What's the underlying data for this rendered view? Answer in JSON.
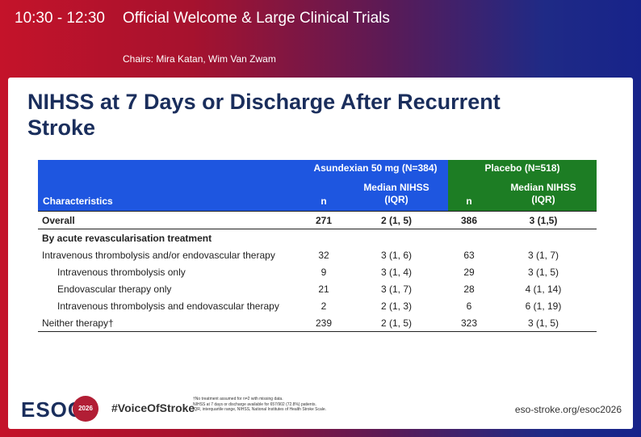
{
  "header": {
    "time": "10:30 - 12:30",
    "session_title": "Official Welcome & Large Clinical Trials",
    "chairs": "Chairs: Mira Katan, Wim Van Zwam"
  },
  "slide": {
    "title_line1": "NIHSS at 7 Days or Discharge After Recurrent",
    "title_line2": "Stroke"
  },
  "table": {
    "group_asundexian": "Asundexian 50 mg (N=384)",
    "group_placebo": "Placebo (N=518)",
    "col_characteristics": "Characteristics",
    "col_n": "n",
    "col_median_line1": "Median NIHSS",
    "col_median_line2": "(IQR)",
    "rows": [
      {
        "label": "Overall",
        "a_n": "271",
        "a_med": "2 (1, 5)",
        "p_n": "386",
        "p_med": "3 (1,5)"
      },
      {
        "label": "By acute revascularisation treatment",
        "a_n": "",
        "a_med": "",
        "p_n": "",
        "p_med": ""
      },
      {
        "label": "Intravenous thrombolysis and/or endovascular therapy",
        "a_n": "32",
        "a_med": "3 (1, 6)",
        "p_n": "63",
        "p_med": "3 (1, 7)"
      },
      {
        "label": "Intravenous thrombolysis only",
        "a_n": "9",
        "a_med": "3 (1, 4)",
        "p_n": "29",
        "p_med": "3 (1, 5)"
      },
      {
        "label": "Endovascular therapy only",
        "a_n": "21",
        "a_med": "3 (1, 7)",
        "p_n": "28",
        "p_med": "4 (1, 14)"
      },
      {
        "label": "Intravenous thrombolysis and endovascular therapy",
        "a_n": "2",
        "a_med": "2 (1, 3)",
        "p_n": "6",
        "p_med": "6 (1, 19)"
      },
      {
        "label": "Neither therapy†",
        "a_n": "239",
        "a_med": "2 (1, 5)",
        "p_n": "323",
        "p_med": "3 (1, 5)"
      }
    ]
  },
  "footer": {
    "logo_text": "ESOC",
    "logo_year": "2026",
    "hashtag": "#VoiceOfStroke",
    "footnote1": "†No treatment assumed for n=2 with missing data.",
    "footnote2": "NIHSS at 7 days or discharge available for 657/902 (72.8%) patients.",
    "footnote3": "IQR, interquartile range, NIHSS, National Institutes of Health Stroke Scale.",
    "website": "eso-stroke.org/esoc2026"
  },
  "colors": {
    "asundexian_header": "#1e56e0",
    "placebo_header": "#1d7d24",
    "title_color": "#1a2e5c",
    "logo_badge": "#b21e35"
  }
}
